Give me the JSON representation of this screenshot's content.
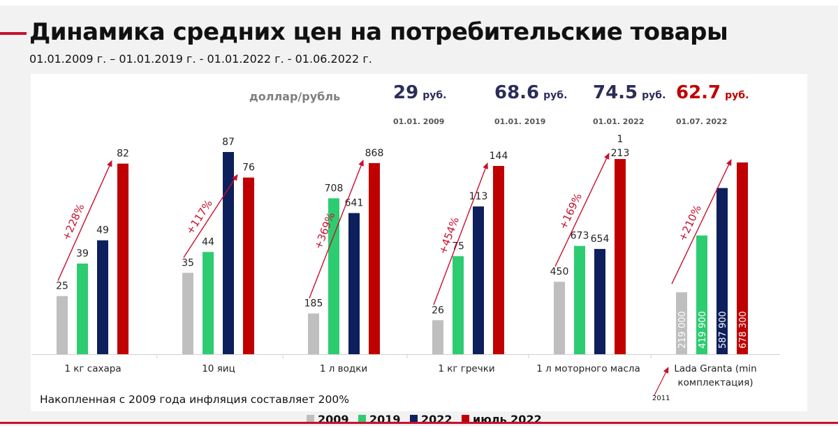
{
  "page": {
    "title": "Динамика средних цен на потребительские товары",
    "subtitle": "01.01.2009 г. – 01.01.2019 г. - 01.01.2022 г. - 01.06.2022 г.",
    "inflation_note": "Накопленная с 2009 года инфляция составляет 200%",
    "lada_year_note": "2011"
  },
  "exchange": {
    "label": "доллар/рубль",
    "unit": "руб.",
    "rates": [
      {
        "value": "29",
        "date": "01.01. 2009",
        "color": "#2b2d5a"
      },
      {
        "value": "68.6",
        "date": "01.01. 2019",
        "color": "#2b2d5a"
      },
      {
        "value": "74.5",
        "date": "01.01. 2022",
        "color": "#2b2d5a"
      },
      {
        "value": "62.7",
        "date": "01.07. 2022",
        "color": "#c00000"
      }
    ]
  },
  "colors": {
    "2009": "#bfbfbf",
    "2019": "#2ecc71",
    "2022": "#0d1f5c",
    "july2022": "#c00000",
    "arrow": "#c8102e"
  },
  "chart_data": {
    "type": "bar",
    "categories": [
      "1 кг сахара",
      "10 яиц",
      "1 л водки",
      "1 кг гречки",
      "1 л моторного масла",
      "Lada Granta (min комплектация)"
    ],
    "series": [
      {
        "name": "2009",
        "values": [
          25,
          35,
          185,
          26,
          450,
          219000
        ],
        "labels": [
          "25",
          "35",
          "185",
          "26",
          "450",
          "219 000"
        ]
      },
      {
        "name": "2019",
        "values": [
          39,
          44,
          708,
          75,
          673,
          419900
        ],
        "labels": [
          "39",
          "44",
          "708",
          "75",
          "673",
          "419 900"
        ]
      },
      {
        "name": "2022",
        "values": [
          49,
          87,
          641,
          113,
          654,
          587900
        ],
        "labels": [
          "49",
          "87",
          "641",
          "113",
          "654",
          "587 900"
        ]
      },
      {
        "name": "июль 2022",
        "values": [
          82,
          76,
          868,
          144,
          1213,
          678300
        ],
        "labels": [
          "82",
          "76",
          "868",
          "144",
          "1 213",
          "678 300"
        ]
      }
    ],
    "growth_annotations": [
      "+228%",
      "+117%",
      "+369%",
      "+454%",
      "+169%",
      "+210%"
    ],
    "scales_per_group": [
      90,
      90,
      950,
      160,
      1300,
      740000
    ],
    "legend_position": "bottom"
  }
}
